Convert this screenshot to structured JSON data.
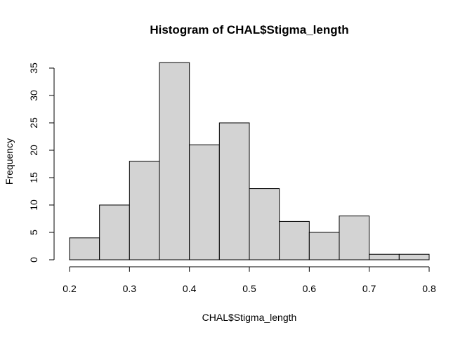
{
  "chart_data": {
    "type": "bar",
    "title": "Histogram of CHAL$Stigma_length",
    "xlabel": "CHAL$Stigma_length",
    "ylabel": "Frequency",
    "bins": [
      {
        "start": 0.2,
        "end": 0.25,
        "count": 4
      },
      {
        "start": 0.25,
        "end": 0.3,
        "count": 10
      },
      {
        "start": 0.3,
        "end": 0.35,
        "count": 18
      },
      {
        "start": 0.35,
        "end": 0.4,
        "count": 36
      },
      {
        "start": 0.4,
        "end": 0.45,
        "count": 21
      },
      {
        "start": 0.45,
        "end": 0.5,
        "count": 25
      },
      {
        "start": 0.5,
        "end": 0.55,
        "count": 13
      },
      {
        "start": 0.55,
        "end": 0.6,
        "count": 7
      },
      {
        "start": 0.6,
        "end": 0.65,
        "count": 5
      },
      {
        "start": 0.65,
        "end": 0.7,
        "count": 8
      },
      {
        "start": 0.7,
        "end": 0.75,
        "count": 1
      },
      {
        "start": 0.75,
        "end": 0.8,
        "count": 1
      }
    ],
    "xlim": [
      0.2,
      0.8
    ],
    "ylim": [
      0,
      35
    ],
    "xticks": [
      "0.2",
      "0.3",
      "0.4",
      "0.5",
      "0.6",
      "0.7",
      "0.8"
    ],
    "yticks": [
      "0",
      "5",
      "10",
      "15",
      "20",
      "25",
      "30",
      "35"
    ],
    "grid": false,
    "bar_color": "#d3d3d3"
  }
}
